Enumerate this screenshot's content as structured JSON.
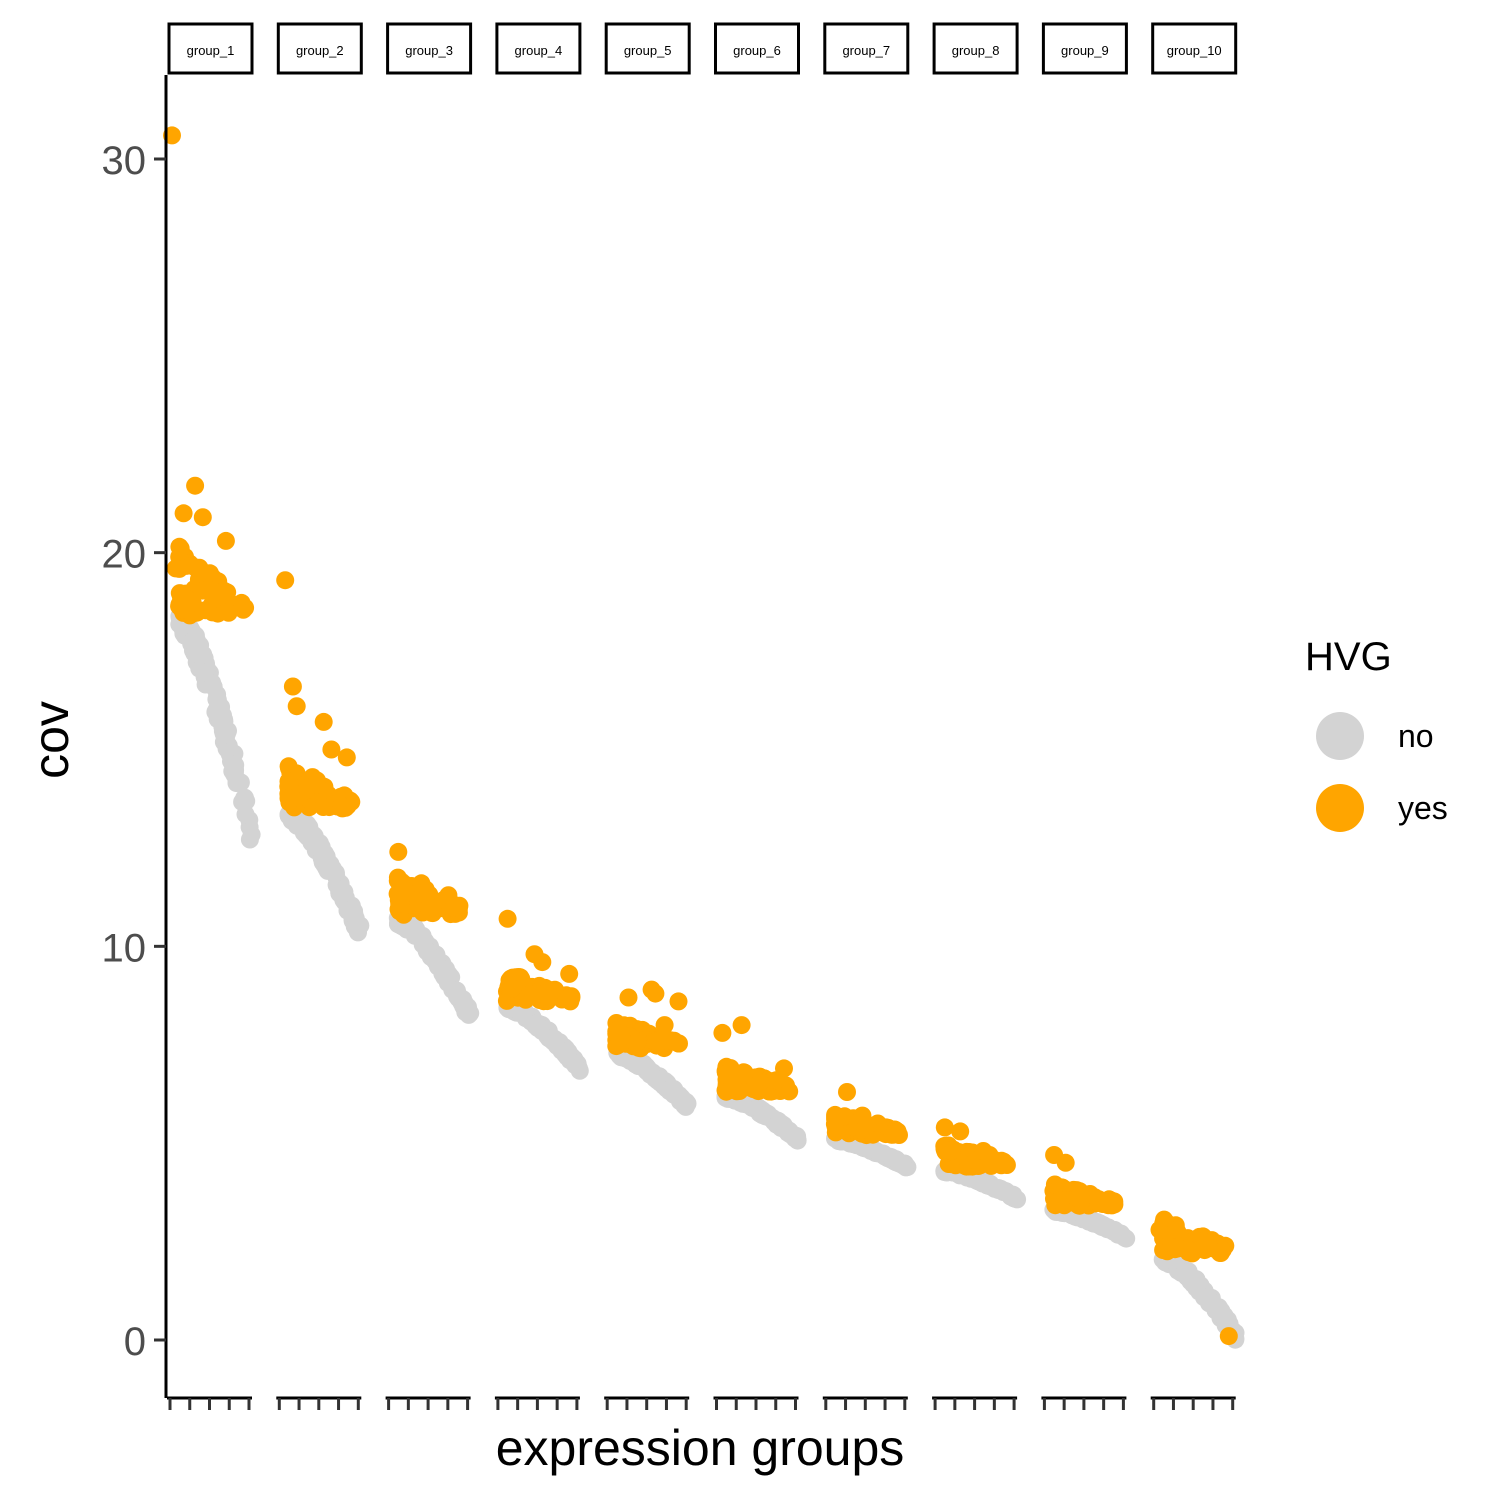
{
  "chart_data": {
    "type": "scatter",
    "xlabel": "expression groups",
    "ylabel": "cov",
    "ylim": [
      -1.4,
      32.0
    ],
    "yticks": [
      0,
      10,
      20,
      30
    ],
    "colors": {
      "no": "#d3d3d3",
      "yes": "#ffa500"
    },
    "legend": {
      "title": "HVG",
      "position": "right",
      "items": [
        "no",
        "yes"
      ]
    },
    "facets": [
      {
        "label": "group_1",
        "hvg_threshold": 18.4,
        "top": 18.3,
        "bottom": 12.8,
        "outliers": [
          [
            0.0,
            30.6
          ],
          [
            0.3,
            21.7
          ],
          [
            0.15,
            21.0
          ],
          [
            0.4,
            20.9
          ],
          [
            0.7,
            20.3
          ],
          [
            0.95,
            18.6
          ],
          [
            0.05,
            19.6
          ]
        ]
      },
      {
        "label": "group_2",
        "hvg_threshold": 13.5,
        "top": 13.4,
        "bottom": 10.3,
        "outliers": [
          [
            0.05,
            19.3
          ],
          [
            0.15,
            16.6
          ],
          [
            0.2,
            16.1
          ],
          [
            0.55,
            15.7
          ],
          [
            0.65,
            15.0
          ],
          [
            0.85,
            14.8
          ]
        ]
      },
      {
        "label": "group_3",
        "hvg_threshold": 10.8,
        "top": 10.7,
        "bottom": 8.2,
        "outliers": [
          [
            0.1,
            12.4
          ],
          [
            0.4,
            11.6
          ],
          [
            0.75,
            11.3
          ]
        ]
      },
      {
        "label": "group_4",
        "hvg_threshold": 8.6,
        "top": 8.5,
        "bottom": 6.9,
        "outliers": [
          [
            0.1,
            10.7
          ],
          [
            0.45,
            9.8
          ],
          [
            0.55,
            9.6
          ],
          [
            0.9,
            9.3
          ]
        ]
      },
      {
        "label": "group_5",
        "hvg_threshold": 7.4,
        "top": 7.3,
        "bottom": 5.9,
        "outliers": [
          [
            0.25,
            8.7
          ],
          [
            0.55,
            8.9
          ],
          [
            0.6,
            8.8
          ],
          [
            0.9,
            8.6
          ],
          [
            0.72,
            8.0
          ]
        ]
      },
      {
        "label": "group_6",
        "hvg_threshold": 6.3,
        "top": 6.2,
        "bottom": 5.1,
        "outliers": [
          [
            0.05,
            7.8
          ],
          [
            0.3,
            8.0
          ],
          [
            0.85,
            6.9
          ],
          [
            0.75,
            6.6
          ]
        ]
      },
      {
        "label": "group_7",
        "hvg_threshold": 5.2,
        "top": 5.1,
        "bottom": 4.4,
        "outliers": [
          [
            0.25,
            6.3
          ],
          [
            0.45,
            5.7
          ],
          [
            0.65,
            5.5
          ]
        ]
      },
      {
        "label": "group_8",
        "hvg_threshold": 4.4,
        "top": 4.3,
        "bottom": 3.6,
        "outliers": [
          [
            0.1,
            5.4
          ],
          [
            0.3,
            5.3
          ],
          [
            0.6,
            4.8
          ],
          [
            0.68,
            4.7
          ]
        ]
      },
      {
        "label": "group_9",
        "hvg_threshold": 3.4,
        "top": 3.3,
        "bottom": 2.6,
        "outliers": [
          [
            0.1,
            4.7
          ],
          [
            0.25,
            4.5
          ],
          [
            0.4,
            3.6
          ]
        ]
      },
      {
        "label": "group_10",
        "hvg_threshold": 2.2,
        "top": 2.1,
        "bottom": 0.1,
        "outliers": [
          [
            0.05,
            2.8
          ],
          [
            0.95,
            0.1
          ]
        ]
      }
    ]
  }
}
